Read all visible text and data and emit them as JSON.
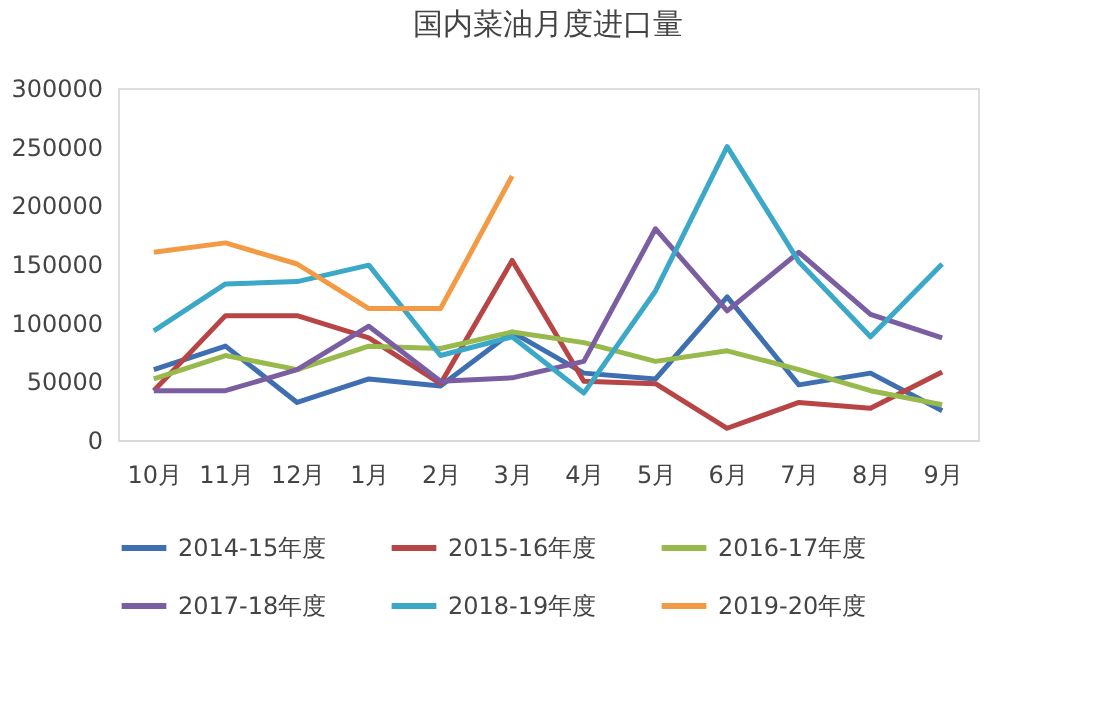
{
  "chart_data": {
    "type": "line",
    "title": "国内菜油月度进口量",
    "categories": [
      "10月",
      "11月",
      "12月",
      "1月",
      "2月",
      "3月",
      "4月",
      "5月",
      "6月",
      "7月",
      "8月",
      "9月"
    ],
    "series": [
      {
        "name": "2014-15年度",
        "color": "#3e6fb0",
        "values": [
          60000,
          80000,
          32000,
          52000,
          46000,
          92000,
          57000,
          52000,
          122000,
          47000,
          57000,
          25000
        ]
      },
      {
        "name": "2015-16年度",
        "color": "#b84545",
        "values": [
          42000,
          106000,
          106000,
          87000,
          48000,
          153000,
          50000,
          48000,
          10000,
          32000,
          27000,
          58000
        ]
      },
      {
        "name": "2016-17年度",
        "color": "#98b94c",
        "values": [
          52000,
          72000,
          60000,
          80000,
          78000,
          92000,
          83000,
          67000,
          76000,
          60000,
          42000,
          30000
        ]
      },
      {
        "name": "2017-18年度",
        "color": "#7b5ea2",
        "values": [
          42000,
          42000,
          60000,
          97000,
          50000,
          53000,
          67000,
          180000,
          110000,
          160000,
          107000,
          87000
        ]
      },
      {
        "name": "2018-19年度",
        "color": "#3aa8c6",
        "values": [
          93000,
          133000,
          135000,
          149000,
          72000,
          88000,
          40000,
          127000,
          250000,
          152000,
          88000,
          150000
        ]
      },
      {
        "name": "2019-20年度",
        "color": "#f39a45",
        "values": [
          160000,
          168000,
          150000,
          112000,
          112000,
          225000,
          null,
          null,
          null,
          null,
          null,
          null
        ]
      }
    ],
    "ylim": [
      0,
      300000
    ],
    "yticks": [
      0,
      50000,
      100000,
      150000,
      200000,
      250000,
      300000
    ],
    "grid": false,
    "legend": "bottom",
    "marker": "none",
    "line_style": "solid"
  }
}
